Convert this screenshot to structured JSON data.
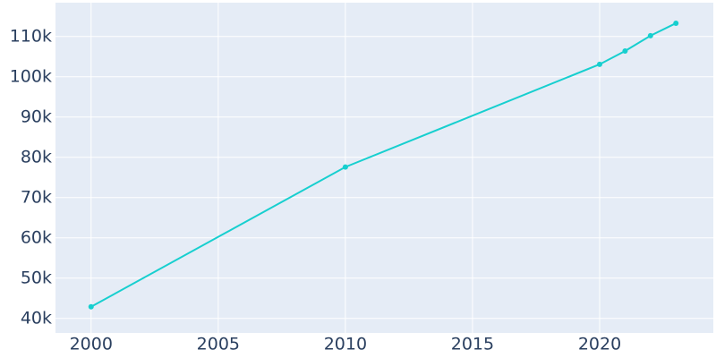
{
  "chart_data": {
    "type": "line",
    "x": [
      2000,
      2010,
      2020,
      2021,
      2022,
      2023
    ],
    "series": [
      {
        "color": "#17cfcf",
        "values": [
          42900,
          77600,
          103100,
          106400,
          110200,
          113300
        ]
      }
    ],
    "xlim": [
      1998.6,
      2024.47
    ],
    "xticks": [
      2000,
      2005,
      2010,
      2015,
      2020
    ],
    "ylim": [
      36400,
      118400
    ],
    "yticks": [
      {
        "value": 40000,
        "label": "40k"
      },
      {
        "value": 50000,
        "label": "50k"
      },
      {
        "value": 60000,
        "label": "60k"
      },
      {
        "value": 70000,
        "label": "70k"
      },
      {
        "value": 80000,
        "label": "80k"
      },
      {
        "value": 90000,
        "label": "90k"
      },
      {
        "value": 100000,
        "label": "100k"
      },
      {
        "value": 110000,
        "label": "110k"
      }
    ],
    "grid": true
  }
}
